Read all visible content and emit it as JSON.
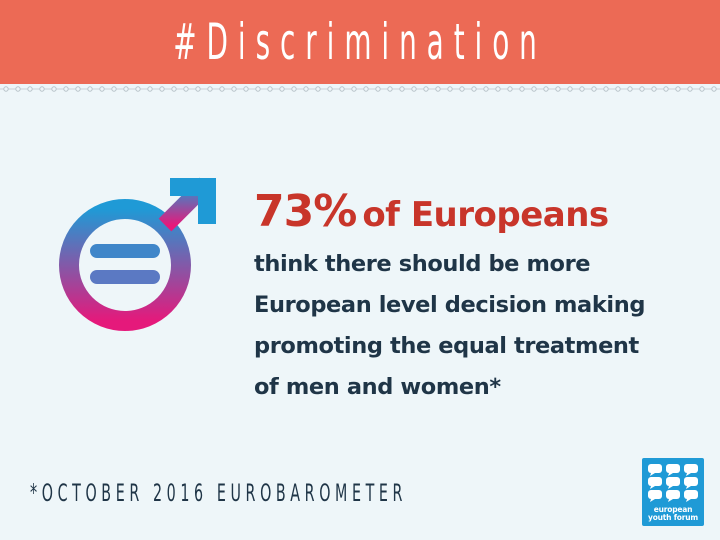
{
  "header": {
    "title": "#Discrimination",
    "background_color": "#ec6a55"
  },
  "symbol": {
    "icon": "gender-equality-icon",
    "gradient_top": "#1f9ad6",
    "gradient_bottom": "#e5197b"
  },
  "headline": {
    "percent": "73%",
    "rest": "of Europeans",
    "color": "#c8352a"
  },
  "body": {
    "lines": [
      "think there should be more",
      "European level decision making",
      "promoting the equal treatment",
      "of men and women*"
    ],
    "color": "#1f3547"
  },
  "footnote": "*OCTOBER 2016 EUROBAROMETER",
  "logo": {
    "line1": "european",
    "line2": "youth forum",
    "color": "#1f9ad6"
  }
}
